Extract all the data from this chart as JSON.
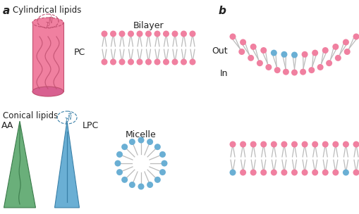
{
  "bg_color": "#ffffff",
  "pink": "#F080A0",
  "blue": "#6AAFD4",
  "green": "#6AAF7A",
  "line_color": "#BBBBBB",
  "dark_pink": "#C05070",
  "dark_blue": "#3A80A8",
  "dark_green": "#3A7A4A",
  "text_color": "#222222",
  "title_a": "a",
  "title_b": "b",
  "label_cyl": "Cylindrical lipids",
  "label_con": "Conical lipids",
  "label_PC": "PC",
  "label_AA": "AA",
  "label_LPC": "LPC",
  "label_bilayer": "Bilayer",
  "label_micelle": "Micelle",
  "label_out": "Out",
  "label_in": "In"
}
